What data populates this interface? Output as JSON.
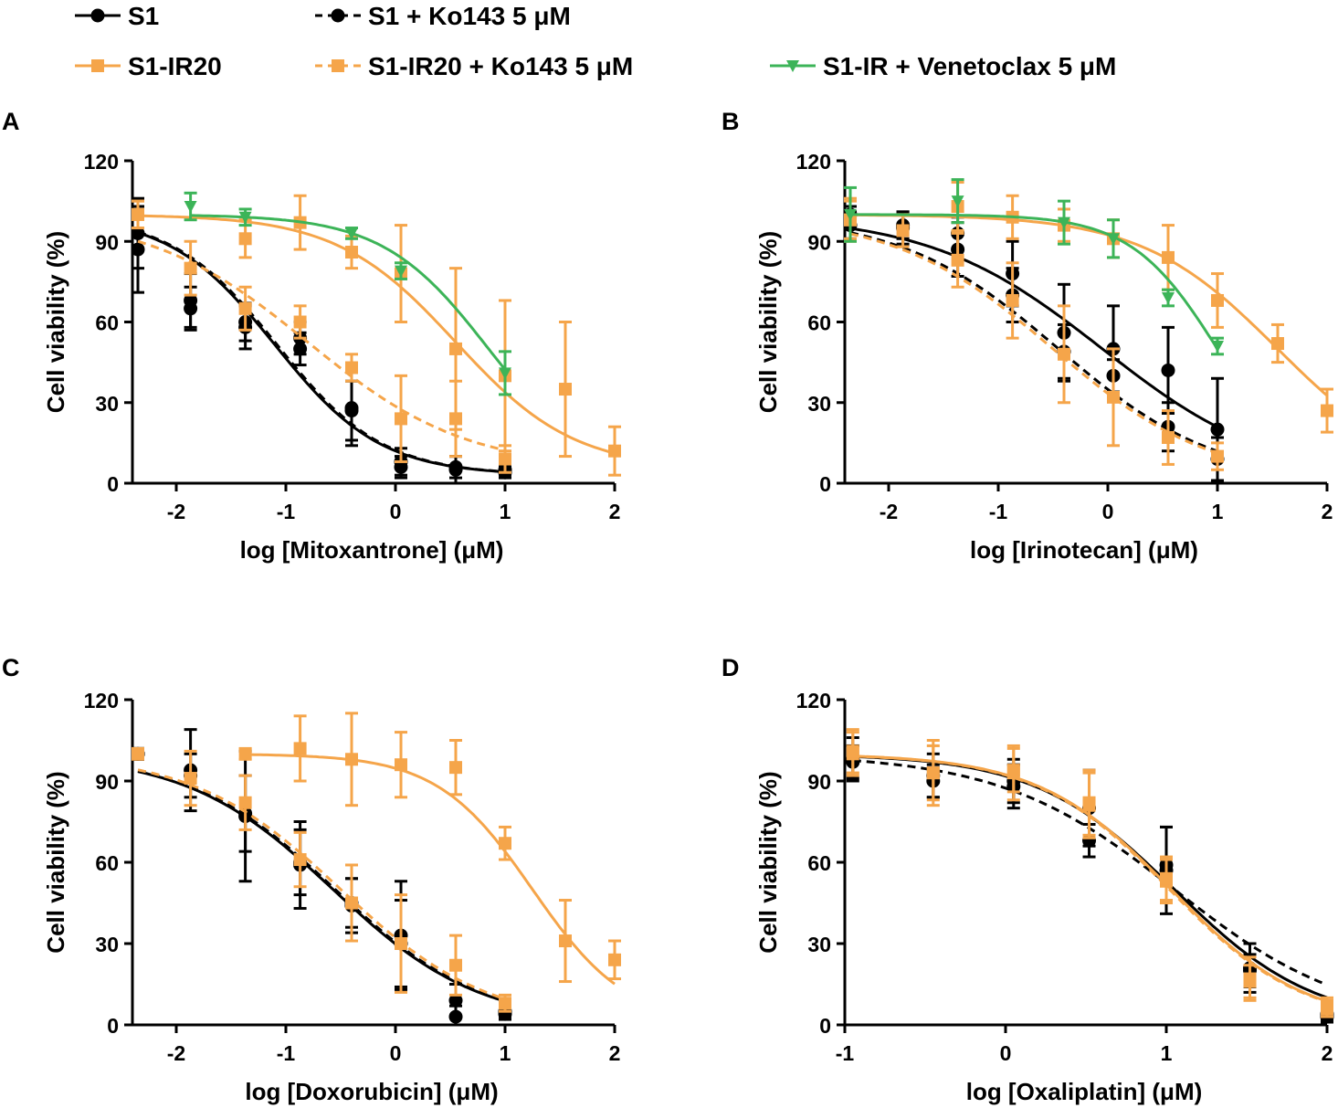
{
  "legend": [
    {
      "label": "S1",
      "color": "#000000",
      "dashed": false,
      "marker": "circle"
    },
    {
      "label": "S1 + Ko143 5 μM",
      "color": "#000000",
      "dashed": true,
      "marker": "circle"
    },
    {
      "label": "S1-IR20",
      "color": "#F5A54A",
      "dashed": false,
      "marker": "square"
    },
    {
      "label": "S1-IR20 +  Ko143 5 μM",
      "color": "#F5A54A",
      "dashed": true,
      "marker": "square"
    },
    {
      "label": "S1-IR +  Venetoclax 5 μM",
      "color": "#3CB458",
      "dashed": false,
      "marker": "triangle"
    }
  ],
  "chart_data": [
    {
      "panel": "A",
      "type": "line",
      "xlabel": "log [Mitoxantrone] (μM)",
      "ylabel": "Cell viability (%)",
      "xlim": [
        -2.4,
        2.0
      ],
      "ylim": [
        0,
        120
      ],
      "xticks": [
        "-2",
        "-1",
        "0",
        "1",
        "2"
      ],
      "xtick_values": [
        -2,
        -1,
        0,
        1,
        2
      ],
      "yticks": [
        "0",
        "30",
        "60",
        "90",
        "120"
      ],
      "ytick_values": [
        0,
        30,
        60,
        90,
        120
      ],
      "series": [
        {
          "name": "S1",
          "x": [
            -2.35,
            -1.87,
            -1.37,
            -0.87,
            -0.4,
            0.05,
            0.55,
            1.0
          ],
          "y": [
            93,
            65,
            60,
            50,
            27,
            6,
            6,
            4
          ],
          "err": [
            13,
            8,
            7,
            6,
            11,
            4,
            4,
            2
          ],
          "fit": {
            "top": 100,
            "bottom": 3,
            "ec50": -1.1,
            "hill": 0.9
          }
        },
        {
          "name": "S1 + Ko143 5 μM",
          "x": [
            -2.35,
            -1.87,
            -1.37,
            -0.87,
            -0.4,
            0.05,
            0.55,
            1.0
          ],
          "y": [
            87,
            68,
            58,
            54,
            28,
            8,
            5,
            5
          ],
          "err": [
            16,
            10,
            8,
            6,
            14,
            5,
            5,
            2
          ],
          "fit": {
            "top": 100,
            "bottom": 3,
            "ec50": -1.08,
            "hill": 0.9
          }
        },
        {
          "name": "S1-IR20",
          "x": [
            -2.35,
            -1.37,
            -0.87,
            -0.4,
            0.05,
            0.55,
            1.0,
            1.55,
            2.0
          ],
          "y": [
            100,
            91,
            97,
            86,
            78,
            50,
            40,
            35,
            12
          ],
          "err": [
            5,
            7,
            10,
            6,
            18,
            30,
            28,
            25,
            9
          ],
          "fit": {
            "top": 100,
            "bottom": 5,
            "ec50": 0.55,
            "hill": 0.8
          }
        },
        {
          "name": "S1-IR20 +  Ko143 5 μM",
          "x": [
            -2.35,
            -1.87,
            -1.37,
            -0.87,
            -0.4,
            0.05,
            0.55,
            1.0
          ],
          "y": [
            100,
            80,
            65,
            60,
            43,
            24,
            24,
            9
          ],
          "err": [
            5,
            10,
            8,
            6,
            5,
            16,
            14,
            5
          ],
          "fit": {
            "top": 100,
            "bottom": 5,
            "ec50": -0.8,
            "hill": 0.6
          }
        },
        {
          "name": "S1-IR +  Venetoclax 5 μM",
          "x": [
            -1.87,
            -1.37,
            -0.4,
            0.05,
            1.0
          ],
          "y": [
            103,
            99,
            93,
            79,
            41
          ],
          "err": [
            5,
            3,
            2,
            3,
            8
          ],
          "fit": {
            "top": 100,
            "bottom": 0,
            "ec50": 0.85,
            "hill": 0.9
          }
        }
      ]
    },
    {
      "panel": "B",
      "type": "line",
      "xlabel": "log [Irinotecan] (μM)",
      "ylabel": "Cell viability (%)",
      "xlim": [
        -2.4,
        2.0
      ],
      "ylim": [
        0,
        120
      ],
      "xticks": [
        "-2",
        "-1",
        "0",
        "1",
        "2"
      ],
      "xtick_values": [
        -2,
        -1,
        0,
        1,
        2
      ],
      "yticks": [
        "0",
        "30",
        "60",
        "90",
        "120"
      ],
      "ytick_values": [
        0,
        30,
        60,
        90,
        120
      ],
      "series": [
        {
          "name": "S1",
          "x": [
            -2.35,
            -1.87,
            -1.37,
            -0.87,
            -0.4,
            0.05,
            0.55,
            1.0
          ],
          "y": [
            100,
            96,
            93,
            78,
            56,
            50,
            42,
            20
          ],
          "err": [
            3,
            5,
            6,
            12,
            18,
            16,
            16,
            19
          ],
          "fit": {
            "top": 100,
            "bottom": 0,
            "ec50": -0.05,
            "hill": 0.55
          }
        },
        {
          "name": "S1 + Ko143 5 μM",
          "x": [
            -2.35,
            -1.87,
            -1.37,
            -0.87,
            -0.4,
            0.05,
            0.55,
            1.0
          ],
          "y": [
            96,
            95,
            87,
            70,
            49,
            40,
            21,
            9
          ],
          "err": [
            5,
            6,
            10,
            10,
            10,
            6,
            9,
            8
          ],
          "fit": {
            "top": 100,
            "bottom": 0,
            "ec50": -0.45,
            "hill": 0.6
          }
        },
        {
          "name": "S1-IR20",
          "x": [
            -2.35,
            -1.37,
            -0.87,
            -0.4,
            0.05,
            0.55,
            1.0,
            1.55,
            2.0
          ],
          "y": [
            98,
            103,
            99,
            96,
            91,
            84,
            68,
            52,
            27
          ],
          "err": [
            7,
            9,
            8,
            6,
            7,
            12,
            10,
            7,
            8
          ],
          "fit": {
            "top": 100,
            "bottom": 0,
            "ec50": 1.55,
            "hill": 0.7
          }
        },
        {
          "name": "S1-IR20 +  Ko143 5 μM",
          "x": [
            -2.35,
            -1.87,
            -1.37,
            -0.87,
            -0.4,
            0.05,
            0.55,
            1.0
          ],
          "y": [
            98,
            94,
            83,
            68,
            48,
            32,
            17,
            10
          ],
          "err": [
            8,
            6,
            10,
            14,
            18,
            18,
            10,
            5
          ],
          "fit": {
            "top": 100,
            "bottom": 0,
            "ec50": -0.5,
            "hill": 0.6
          }
        },
        {
          "name": "S1-IR +  Venetoclax 5 μM",
          "x": [
            -2.35,
            -1.37,
            -0.4,
            0.05,
            0.55,
            1.0
          ],
          "y": [
            100,
            105,
            97,
            91,
            69,
            51
          ],
          "err": [
            10,
            8,
            8,
            7,
            3,
            3
          ],
          "fit": {
            "top": 100,
            "bottom": 0,
            "ec50": 1.0,
            "hill": 1.1
          }
        }
      ]
    },
    {
      "panel": "C",
      "type": "line",
      "xlabel": "log [Doxorubicin] (μM)",
      "ylabel": "Cell viability (%)",
      "xlim": [
        -2.4,
        2.0
      ],
      "ylim": [
        0,
        120
      ],
      "xticks": [
        "-2",
        "-1",
        "0",
        "1",
        "2"
      ],
      "xtick_values": [
        -2,
        -1,
        0,
        1,
        2
      ],
      "yticks": [
        "0",
        "30",
        "60",
        "90",
        "120"
      ],
      "ytick_values": [
        0,
        30,
        60,
        90,
        120
      ],
      "series": [
        {
          "name": "S1",
          "x": [
            -2.35,
            -1.87,
            -1.37,
            -0.87,
            -0.4,
            0.05,
            0.55,
            1.0
          ],
          "y": [
            100,
            94,
            77,
            59,
            44,
            33,
            9,
            4
          ],
          "err": [
            2,
            15,
            24,
            16,
            10,
            20,
            6,
            2
          ],
          "fit": {
            "top": 100,
            "bottom": 0,
            "ec50": -0.57,
            "hill": 0.65
          }
        },
        {
          "name": "S1 + Ko143 5 μM",
          "x": [
            -2.35,
            -1.87,
            -1.37,
            -0.87,
            -0.4,
            0.05,
            0.55,
            1.0
          ],
          "y": [
            100,
            92,
            78,
            60,
            45,
            30,
            3,
            5
          ],
          "err": [
            2,
            8,
            14,
            12,
            9,
            16,
            4,
            2
          ],
          "fit": {
            "top": 100,
            "bottom": 0,
            "ec50": -0.55,
            "hill": 0.65
          }
        },
        {
          "name": "S1-IR20",
          "x": [
            -1.37,
            -0.87,
            -0.4,
            0.05,
            0.55,
            1.0,
            1.55,
            2.0
          ],
          "y": [
            100,
            102,
            98,
            96,
            95,
            67,
            31,
            24
          ],
          "err": [
            2,
            12,
            17,
            12,
            10,
            6,
            15,
            7
          ],
          "fit": {
            "top": 100,
            "bottom": 0,
            "ec50": 1.25,
            "hill": 1.0
          }
        },
        {
          "name": "S1-IR20 +  Ko143 5 μM",
          "x": [
            -2.35,
            -1.87,
            -1.37,
            -0.87,
            -0.4,
            0.05,
            0.55,
            1.0
          ],
          "y": [
            100,
            91,
            82,
            61,
            45,
            30,
            22,
            8
          ],
          "err": [
            2,
            10,
            10,
            10,
            14,
            18,
            11,
            3
          ],
          "fit": {
            "top": 100,
            "bottom": 0,
            "ec50": -0.5,
            "hill": 0.65
          }
        }
      ]
    },
    {
      "panel": "D",
      "type": "line",
      "xlabel": "log [Oxaliplatin] (μM)",
      "ylabel": "Cell viability (%)",
      "xlim": [
        -1.0,
        2.0
      ],
      "ylim": [
        0,
        120
      ],
      "xticks": [
        "-1",
        "0",
        "1",
        "2"
      ],
      "xtick_values": [
        -1,
        0,
        1,
        2
      ],
      "yticks": [
        "0",
        "30",
        "60",
        "90",
        "120"
      ],
      "ytick_values": [
        0,
        30,
        60,
        90,
        120
      ],
      "series": [
        {
          "name": "S1",
          "x": [
            -0.95,
            -0.45,
            0.05,
            0.52,
            1.0,
            1.52,
            2.0
          ],
          "y": [
            98,
            90,
            90,
            80,
            57,
            21,
            4
          ],
          "err": [
            8,
            6,
            8,
            14,
            16,
            9,
            2
          ],
          "fit": {
            "top": 100,
            "bottom": 0,
            "ec50": 1.05,
            "hill": 1.0
          }
        },
        {
          "name": "S1 + Ko143 5 μM",
          "x": [
            -0.95,
            -0.45,
            0.05,
            0.52,
            1.0,
            1.52,
            2.0
          ],
          "y": [
            97,
            92,
            88,
            68,
            59,
            20,
            3
          ],
          "err": [
            6,
            8,
            8,
            6,
            14,
            6,
            2
          ],
          "fit": {
            "top": 100,
            "bottom": 0,
            "ec50": 1.05,
            "hill": 0.8
          }
        },
        {
          "name": "S1-IR20",
          "x": [
            -0.95,
            -0.45,
            0.05,
            0.52,
            1.0,
            1.52,
            2.0
          ],
          "y": [
            100,
            93,
            94,
            81,
            53,
            17,
            6
          ],
          "err": [
            8,
            10,
            8,
            12,
            8,
            8,
            3
          ],
          "fit": {
            "top": 100,
            "bottom": 0,
            "ec50": 1.03,
            "hill": 1.05
          }
        },
        {
          "name": "S1-IR20 +  Ko143 5 μM",
          "x": [
            -0.95,
            -0.45,
            0.05,
            0.52,
            1.0,
            1.52,
            2.0
          ],
          "y": [
            101,
            93,
            93,
            82,
            54,
            16,
            7
          ],
          "err": [
            8,
            12,
            10,
            12,
            8,
            6,
            3
          ],
          "fit": {
            "top": 100,
            "bottom": 0,
            "ec50": 1.02,
            "hill": 1.05
          }
        }
      ]
    }
  ]
}
